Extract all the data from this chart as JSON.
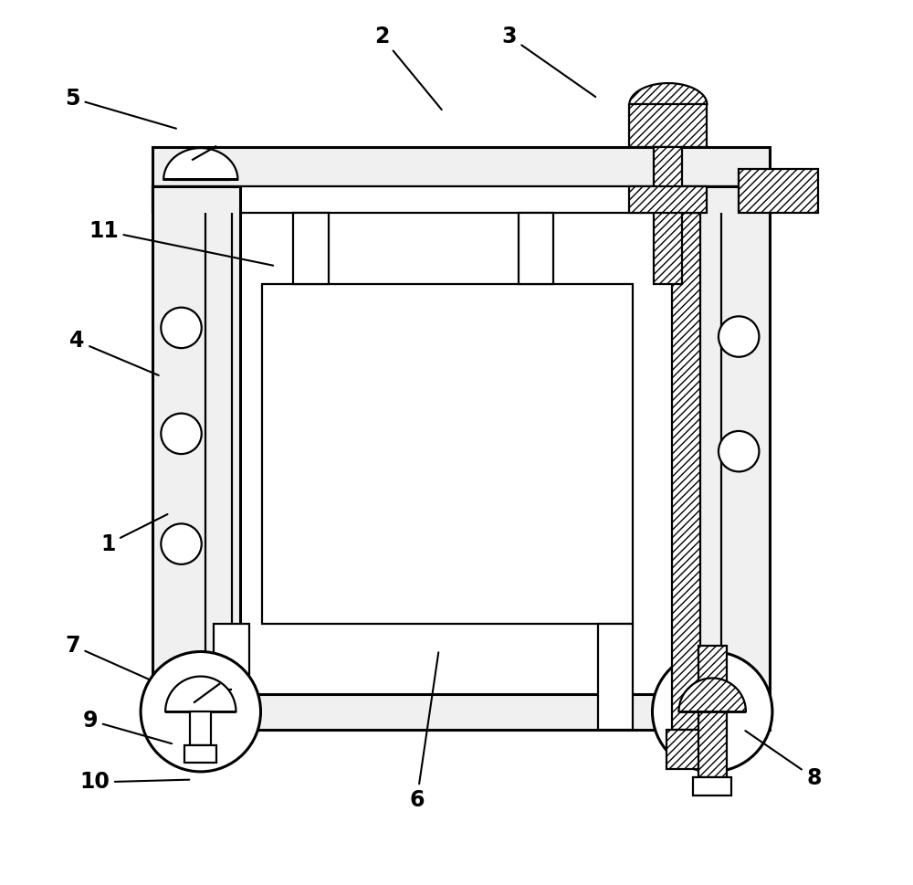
{
  "bg_color": "#ffffff",
  "line_color": "#000000",
  "lw": 1.6,
  "lw2": 2.2,
  "fig_width": 10.0,
  "fig_height": 9.69,
  "annotations": {
    "1": {
      "tp": [
        0.105,
        0.385
      ],
      "le": [
        0.175,
        0.42
      ]
    },
    "2": {
      "tp": [
        0.415,
        0.96
      ],
      "le": [
        0.485,
        0.875
      ]
    },
    "3": {
      "tp": [
        0.56,
        0.96
      ],
      "le": [
        0.66,
        0.89
      ]
    },
    "4": {
      "tp": [
        0.07,
        0.615
      ],
      "le": [
        0.165,
        0.575
      ]
    },
    "5": {
      "tp": [
        0.065,
        0.89
      ],
      "le": [
        0.185,
        0.855
      ]
    },
    "6": {
      "tp": [
        0.455,
        0.095
      ],
      "le": [
        0.48,
        0.265
      ]
    },
    "7": {
      "tp": [
        0.065,
        0.27
      ],
      "le": [
        0.155,
        0.23
      ]
    },
    "8": {
      "tp": [
        0.905,
        0.12
      ],
      "le": [
        0.825,
        0.175
      ]
    },
    "9": {
      "tp": [
        0.085,
        0.185
      ],
      "le": [
        0.18,
        0.158
      ]
    },
    "10": {
      "tp": [
        0.09,
        0.115
      ],
      "le": [
        0.2,
        0.118
      ]
    },
    "11": {
      "tp": [
        0.1,
        0.74
      ],
      "le": [
        0.295,
        0.7
      ]
    }
  }
}
